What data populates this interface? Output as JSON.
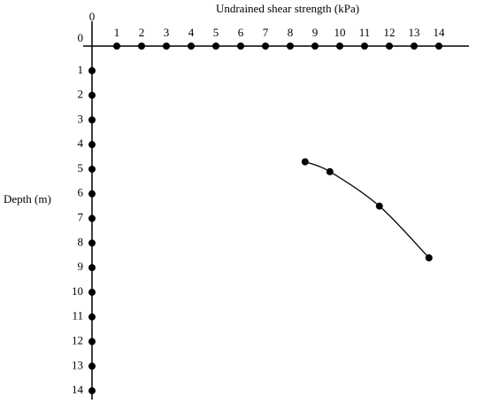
{
  "chart_data": {
    "type": "scatter",
    "title": "Undrained shear strength (kPa)",
    "y_label": "Depth (m)",
    "x": [
      8.6,
      9.6,
      11.6,
      13.6
    ],
    "values": [
      4.7,
      5.1,
      6.5,
      8.6
    ],
    "color": "#000000",
    "xlim": [
      0,
      15
    ],
    "ylim": [
      0,
      14.5
    ],
    "xticks": [
      0,
      1,
      2,
      3,
      4,
      5,
      6,
      7,
      8,
      9,
      10,
      11,
      12,
      13,
      14
    ],
    "yticks": [
      0,
      1,
      2,
      3,
      4,
      5,
      6,
      7,
      8,
      9,
      10,
      11,
      12,
      13,
      14
    ],
    "y_inverted": true,
    "x_axis_top": true,
    "grid": false
  }
}
